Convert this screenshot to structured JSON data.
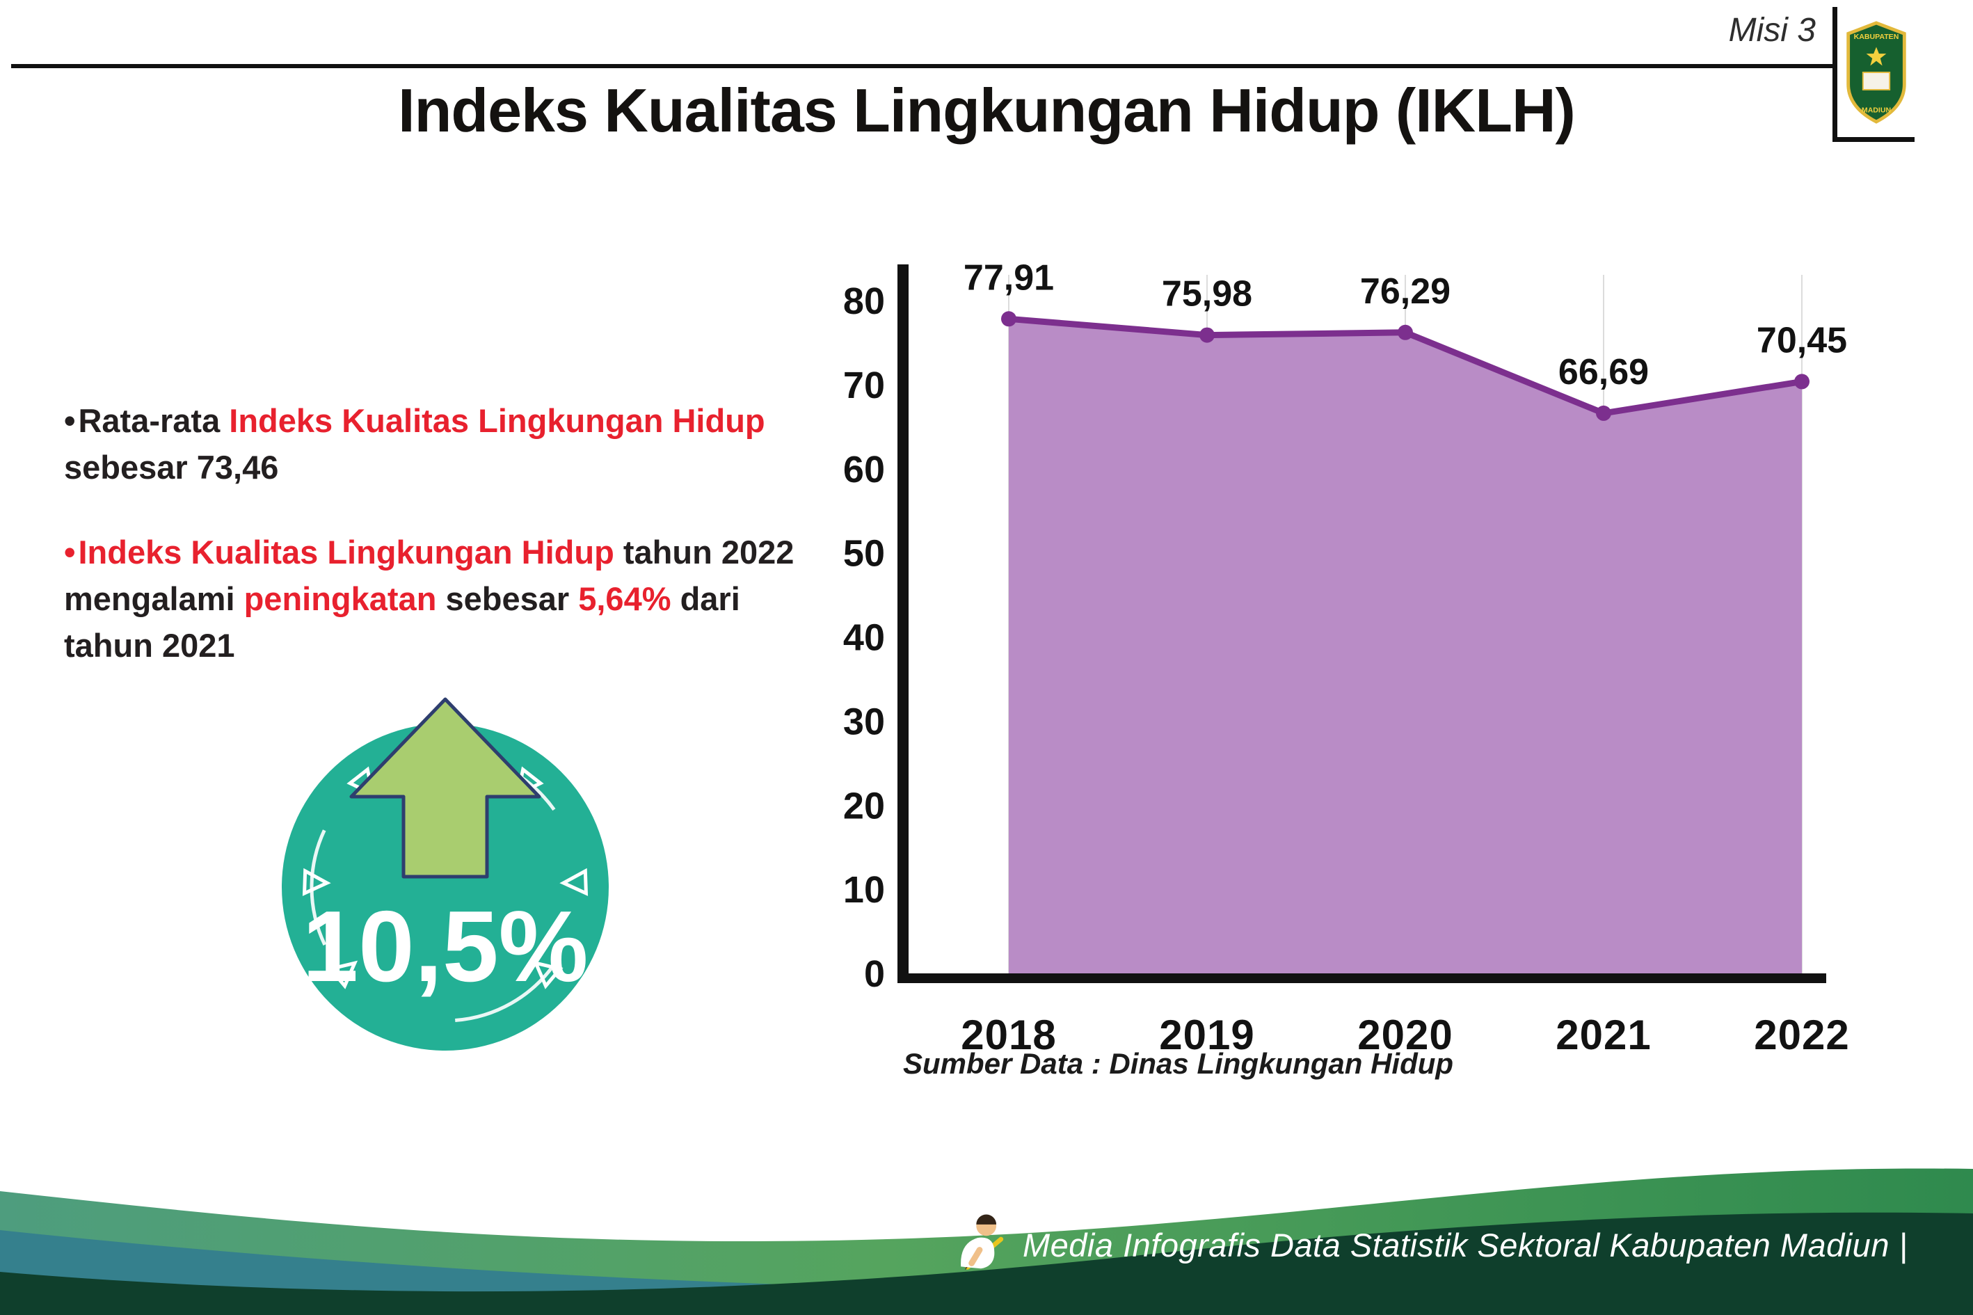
{
  "meta": {
    "misi": "Misi 3"
  },
  "logo": {
    "top": "KABUPATEN",
    "bottom": "MADIUN"
  },
  "title": "Indeks Kualitas Lingkungan Hidup (IKLH)",
  "colors": {
    "red": "#e8212e",
    "dark": "#231f20",
    "badge_teal": "#23b095",
    "arrow_green": "#a9cd6f",
    "arrow_outline": "#2e3e6e"
  },
  "bullets": [
    {
      "segments": [
        {
          "text": "Rata-rata ",
          "color": "dark"
        },
        {
          "text": "Indeks Kualitas Lingkungan Hidup",
          "color": "red"
        },
        {
          "text": " sebesar 73,46",
          "color": "dark"
        }
      ]
    },
    {
      "segments": [
        {
          "text": "Indeks Kualitas Lingkungan Hidup",
          "color": "red"
        },
        {
          "text": " tahun 2022 mengalami ",
          "color": "dark"
        },
        {
          "text": "peningkatan",
          "color": "red"
        },
        {
          "text": " sebesar ",
          "color": "dark"
        },
        {
          "text": "5,64%",
          "color": "red"
        },
        {
          "text": " dari tahun 2021",
          "color": "dark"
        }
      ]
    }
  ],
  "badge": {
    "value": "10,5%"
  },
  "chart_data": {
    "type": "area",
    "title": "",
    "categories": [
      "2018",
      "2019",
      "2020",
      "2021",
      "2022"
    ],
    "values": [
      77.91,
      75.98,
      76.29,
      66.69,
      70.45
    ],
    "labels": [
      "77,91",
      "75,98",
      "76,29",
      "66,69",
      "70,45"
    ],
    "ylim": [
      0,
      80
    ],
    "ytick_step": 10,
    "grid": "vertical",
    "legend": "none",
    "source": "Sumber Data : Dinas Lingkungan Hidup",
    "colors": {
      "area": "#b98cc6",
      "line": "#7c2f8e",
      "point": "#7c2f8e"
    }
  },
  "footer": {
    "credit": "Media Infografis Data Statistik Sektoral Kabupaten Madiun |"
  }
}
